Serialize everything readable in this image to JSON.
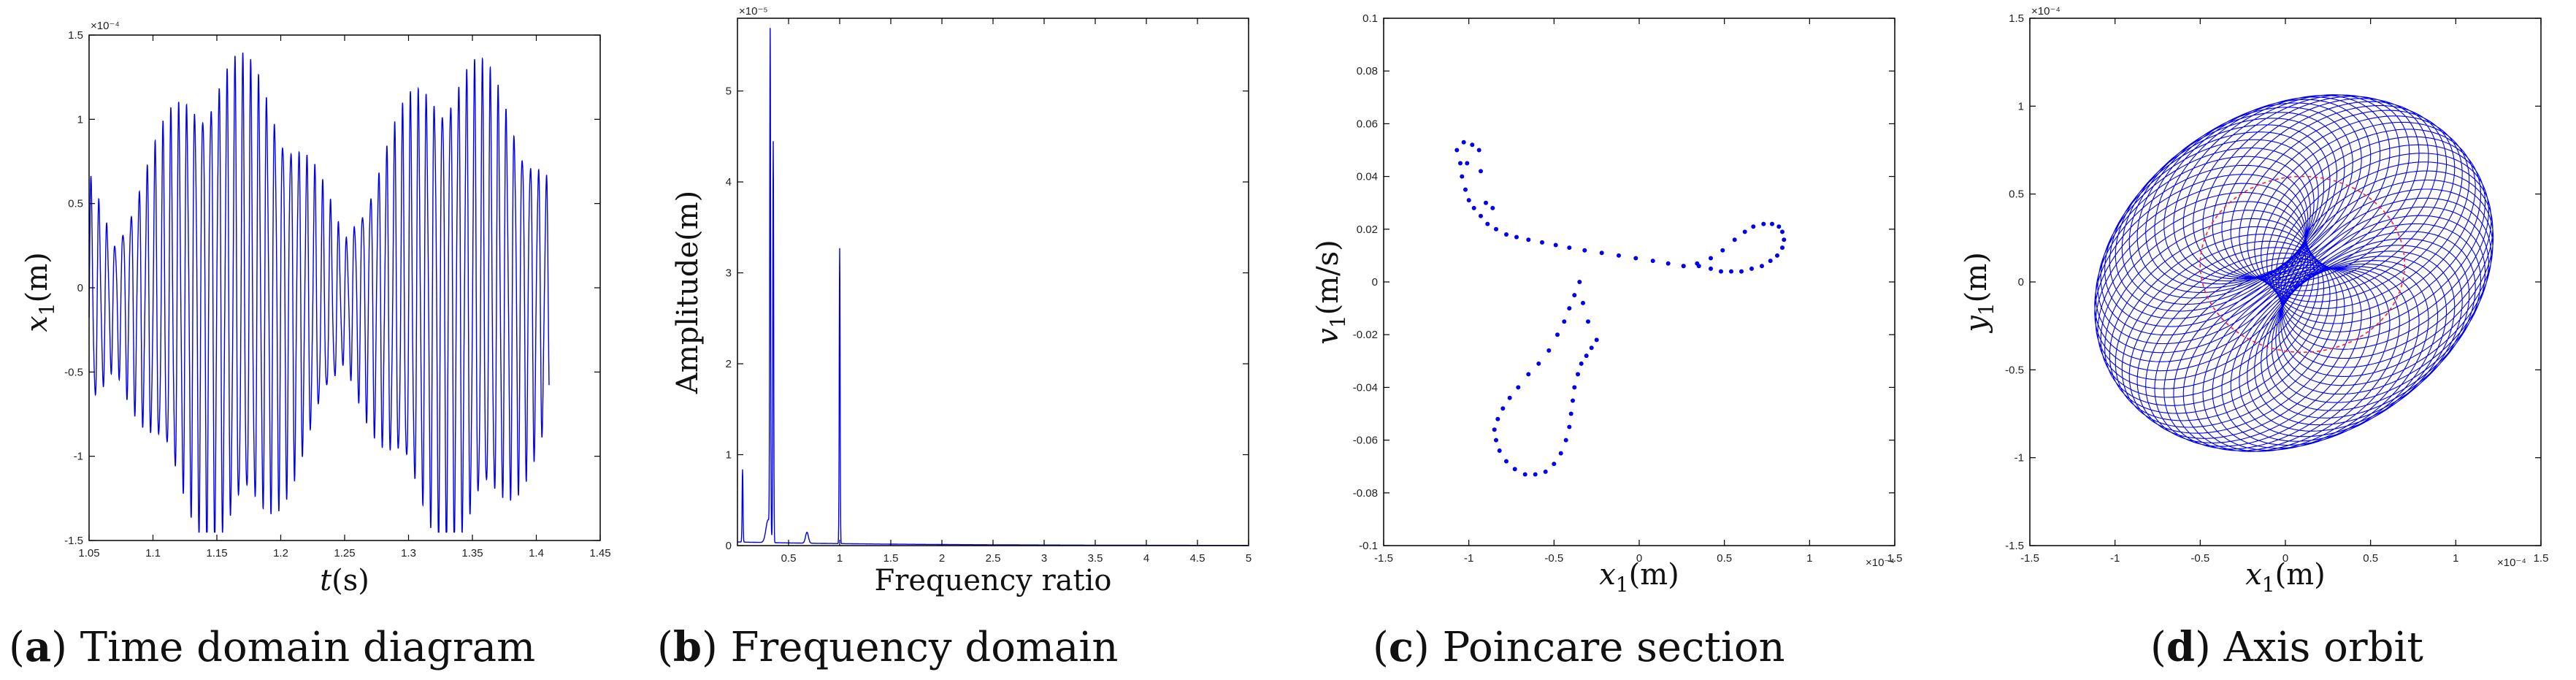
{
  "colors": {
    "line": "#0000ee",
    "dots": "#0000ee",
    "red": "#ff2222",
    "axis": "#000000"
  },
  "chart_data": [
    {
      "id": "a",
      "type": "line",
      "caption_letter": "a",
      "caption_text": ") Time domain diagram",
      "xlabel": "t",
      "xlabel_unit": "(s)",
      "ylabel": "x",
      "ylabel_sub": "1",
      "ylabel_unit": "(m)",
      "xlim": [
        1.05,
        1.45
      ],
      "ylim": [
        -1.5,
        1.5
      ],
      "exponent": "×10⁻⁴",
      "xticks": [
        "1.05",
        "1.1",
        "1.15",
        "1.2",
        "1.25",
        "1.3",
        "1.35",
        "1.4",
        "1.45"
      ],
      "xtick_values": [
        1.05,
        1.1,
        1.15,
        1.2,
        1.25,
        1.3,
        1.35,
        1.4,
        1.45
      ],
      "yticks": [
        "-1.5",
        "-1",
        "-0.5",
        "0",
        "0.5",
        "1",
        "1.5"
      ],
      "ytick_values": [
        -1.5,
        -1,
        -0.5,
        0,
        0.5,
        1,
        1.5
      ],
      "signal": {
        "t_start": 1.05,
        "t_end": 1.41,
        "envelope_peak": 1.3,
        "envelope_period": 0.18,
        "envelope_center": 1.16,
        "fast_frequency": 160
      }
    },
    {
      "id": "b",
      "type": "line",
      "caption_letter": "b",
      "caption_text": ") Frequency domain",
      "xlabel": "Frequency ratio",
      "ylabel": "Amplitude(m)",
      "xlim": [
        0,
        5
      ],
      "ylim": [
        0,
        5.8
      ],
      "exponent": "×10⁻⁵",
      "xticks": [
        "0.5",
        "1",
        "1.5",
        "2",
        "2.5",
        "3",
        "3.5",
        "4",
        "4.5",
        "5"
      ],
      "xtick_values": [
        0.5,
        1,
        1.5,
        2,
        2.5,
        3,
        3.5,
        4,
        4.5,
        5
      ],
      "yticks": [
        "0",
        "1",
        "2",
        "3",
        "4",
        "5"
      ],
      "ytick_values": [
        0,
        1,
        2,
        3,
        4,
        5
      ],
      "peaks": [
        {
          "x": 0.05,
          "y": 0.8
        },
        {
          "x": 0.32,
          "y": 5.5
        },
        {
          "x": 0.35,
          "y": 4.4
        },
        {
          "x": 1.0,
          "y": 3.25
        }
      ]
    },
    {
      "id": "c",
      "type": "scatter",
      "caption_letter": "c",
      "caption_text": ") Poincare section",
      "xlabel": "x",
      "xlabel_sub": "1",
      "xlabel_unit": "(m)",
      "ylabel": "v",
      "ylabel_sub": "1",
      "ylabel_unit": "(m/s)",
      "xlim": [
        -1.5,
        1.5
      ],
      "ylim": [
        -0.1,
        0.1
      ],
      "exponent": "×10⁻⁴",
      "xticks": [
        "-1.5",
        "-1",
        "-0.5",
        "0",
        "0.5",
        "1",
        "1.5"
      ],
      "xtick_values": [
        -1.5,
        -1,
        -0.5,
        0,
        0.5,
        1,
        1.5
      ],
      "yticks": [
        "-0.1",
        "-0.08",
        "-0.06",
        "-0.04",
        "-0.02",
        "0",
        "0.02",
        "0.04",
        "0.06",
        "0.08",
        "0.1"
      ],
      "ytick_values": [
        -0.1,
        -0.08,
        -0.06,
        -0.04,
        -0.02,
        0,
        0.02,
        0.04,
        0.06,
        0.08,
        0.1
      ],
      "points": [
        [
          -1.03,
          0.053
        ],
        [
          -1.07,
          0.05
        ],
        [
          -1.05,
          0.045
        ],
        [
          -1.04,
          0.04
        ],
        [
          -1.02,
          0.035
        ],
        [
          -1.0,
          0.031
        ],
        [
          -0.97,
          0.028
        ],
        [
          -0.93,
          0.025
        ],
        [
          -0.89,
          0.022
        ],
        [
          -0.84,
          0.02
        ],
        [
          -0.78,
          0.018
        ],
        [
          -0.72,
          0.017
        ],
        [
          -0.65,
          0.016
        ],
        [
          -0.57,
          0.015
        ],
        [
          -0.49,
          0.014
        ],
        [
          -0.41,
          0.013
        ],
        [
          -0.32,
          0.012
        ],
        [
          -0.22,
          0.011
        ],
        [
          -0.12,
          0.01
        ],
        [
          -0.02,
          0.009
        ],
        [
          0.08,
          0.008
        ],
        [
          0.17,
          0.007
        ],
        [
          0.26,
          0.006
        ],
        [
          0.35,
          0.006
        ],
        [
          0.42,
          0.005
        ],
        [
          0.48,
          0.004
        ],
        [
          0.54,
          0.004
        ],
        [
          0.6,
          0.004
        ],
        [
          0.66,
          0.005
        ],
        [
          0.72,
          0.006
        ],
        [
          0.77,
          0.008
        ],
        [
          0.81,
          0.01
        ],
        [
          0.84,
          0.013
        ],
        [
          0.85,
          0.016
        ],
        [
          0.84,
          0.019
        ],
        [
          0.82,
          0.021
        ],
        [
          0.78,
          0.022
        ],
        [
          0.73,
          0.022
        ],
        [
          0.67,
          0.021
        ],
        [
          0.62,
          0.019
        ],
        [
          0.56,
          0.016
        ],
        [
          0.49,
          0.012
        ],
        [
          0.42,
          0.009
        ],
        [
          0.34,
          0.007
        ],
        [
          0.26,
          0.006
        ],
        [
          -0.25,
          -0.022
        ],
        [
          -0.28,
          -0.025
        ],
        [
          -0.31,
          -0.028
        ],
        [
          -0.34,
          -0.031
        ],
        [
          -0.36,
          -0.035
        ],
        [
          -0.38,
          -0.04
        ],
        [
          -0.39,
          -0.045
        ],
        [
          -0.4,
          -0.05
        ],
        [
          -0.41,
          -0.055
        ],
        [
          -0.43,
          -0.06
        ],
        [
          -0.46,
          -0.065
        ],
        [
          -0.5,
          -0.069
        ],
        [
          -0.55,
          -0.072
        ],
        [
          -0.61,
          -0.073
        ],
        [
          -0.67,
          -0.073
        ],
        [
          -0.73,
          -0.071
        ],
        [
          -0.78,
          -0.068
        ],
        [
          -0.82,
          -0.064
        ],
        [
          -0.84,
          -0.06
        ],
        [
          -0.85,
          -0.056
        ],
        [
          -0.83,
          -0.052
        ],
        [
          -0.8,
          -0.048
        ],
        [
          -0.76,
          -0.044
        ],
        [
          -0.71,
          -0.04
        ],
        [
          -0.65,
          -0.035
        ],
        [
          -0.59,
          -0.031
        ],
        [
          -0.53,
          -0.026
        ],
        [
          -0.48,
          -0.02
        ],
        [
          -0.44,
          -0.015
        ],
        [
          -0.41,
          -0.01
        ],
        [
          -0.38,
          -0.005
        ],
        [
          -0.35,
          0.0
        ],
        [
          -0.3,
          -0.015
        ],
        [
          -0.33,
          -0.008
        ],
        [
          -0.94,
          0.05
        ],
        [
          -0.98,
          0.052
        ],
        [
          -1.01,
          0.045
        ],
        [
          -0.93,
          0.042
        ],
        [
          -0.9,
          0.03
        ],
        [
          -0.86,
          0.028
        ]
      ]
    },
    {
      "id": "d",
      "type": "line",
      "caption_letter": "d",
      "caption_text": ") Axis orbit",
      "xlabel": "x",
      "xlabel_sub": "1",
      "xlabel_unit": "(m)",
      "ylabel": "y",
      "ylabel_sub": "1",
      "ylabel_unit": "(m)",
      "xlim": [
        -1.5,
        1.5
      ],
      "ylim": [
        -1.5,
        1.5
      ],
      "exponent_x": "×10⁻⁴",
      "exponent_y": "×10⁻⁴",
      "xticks": [
        "-1.5",
        "-1",
        "-0.5",
        "0",
        "0.5",
        "1",
        "1.5"
      ],
      "xtick_values": [
        -1.5,
        -1,
        -0.5,
        0,
        0.5,
        1,
        1.5
      ],
      "yticks": [
        "-1.5",
        "-1",
        "-0.5",
        "0",
        "0.5",
        "1",
        "1.5"
      ],
      "ytick_values": [
        -1.5,
        -1,
        -0.5,
        0,
        0.5,
        1,
        1.5
      ],
      "orbit": {
        "ring_radius": 0.55,
        "ellipse_rx": 0.62,
        "ellipse_ry": 0.52,
        "loops": 60,
        "center": [
          0.05,
          0.05
        ]
      },
      "red_ellipse": {
        "cx": 0.1,
        "cy": 0.1,
        "rx": 0.6,
        "ry": 0.5
      }
    }
  ]
}
